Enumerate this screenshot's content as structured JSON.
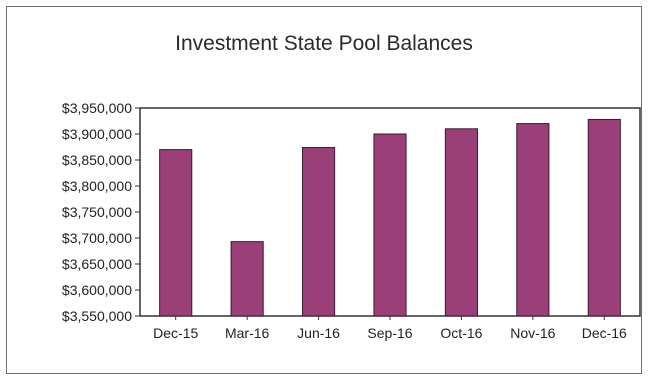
{
  "chart_data": {
    "type": "bar",
    "title": "Investment State Pool Balances",
    "xlabel": "",
    "ylabel": "",
    "categories": [
      "Dec-15",
      "Mar-16",
      "Jun-16",
      "Sep-16",
      "Oct-16",
      "Nov-16",
      "Dec-16"
    ],
    "values": [
      3870000,
      3693000,
      3874000,
      3900000,
      3910000,
      3920000,
      3928000
    ],
    "ylim": [
      3550000,
      3950000
    ],
    "yticks": [
      3550000,
      3600000,
      3650000,
      3700000,
      3750000,
      3800000,
      3850000,
      3900000,
      3950000
    ],
    "ytick_labels": [
      "$3,550,000",
      "$3,600,000",
      "$3,650,000",
      "$3,700,000",
      "$3,750,000",
      "$3,800,000",
      "$3,850,000",
      "$3,900,000",
      "$3,950,000"
    ],
    "grid": false,
    "legend": "none",
    "colors": {
      "bar_fill": "#9b3f78",
      "bar_stroke": "#3a1a30",
      "axis": "#333333"
    }
  }
}
